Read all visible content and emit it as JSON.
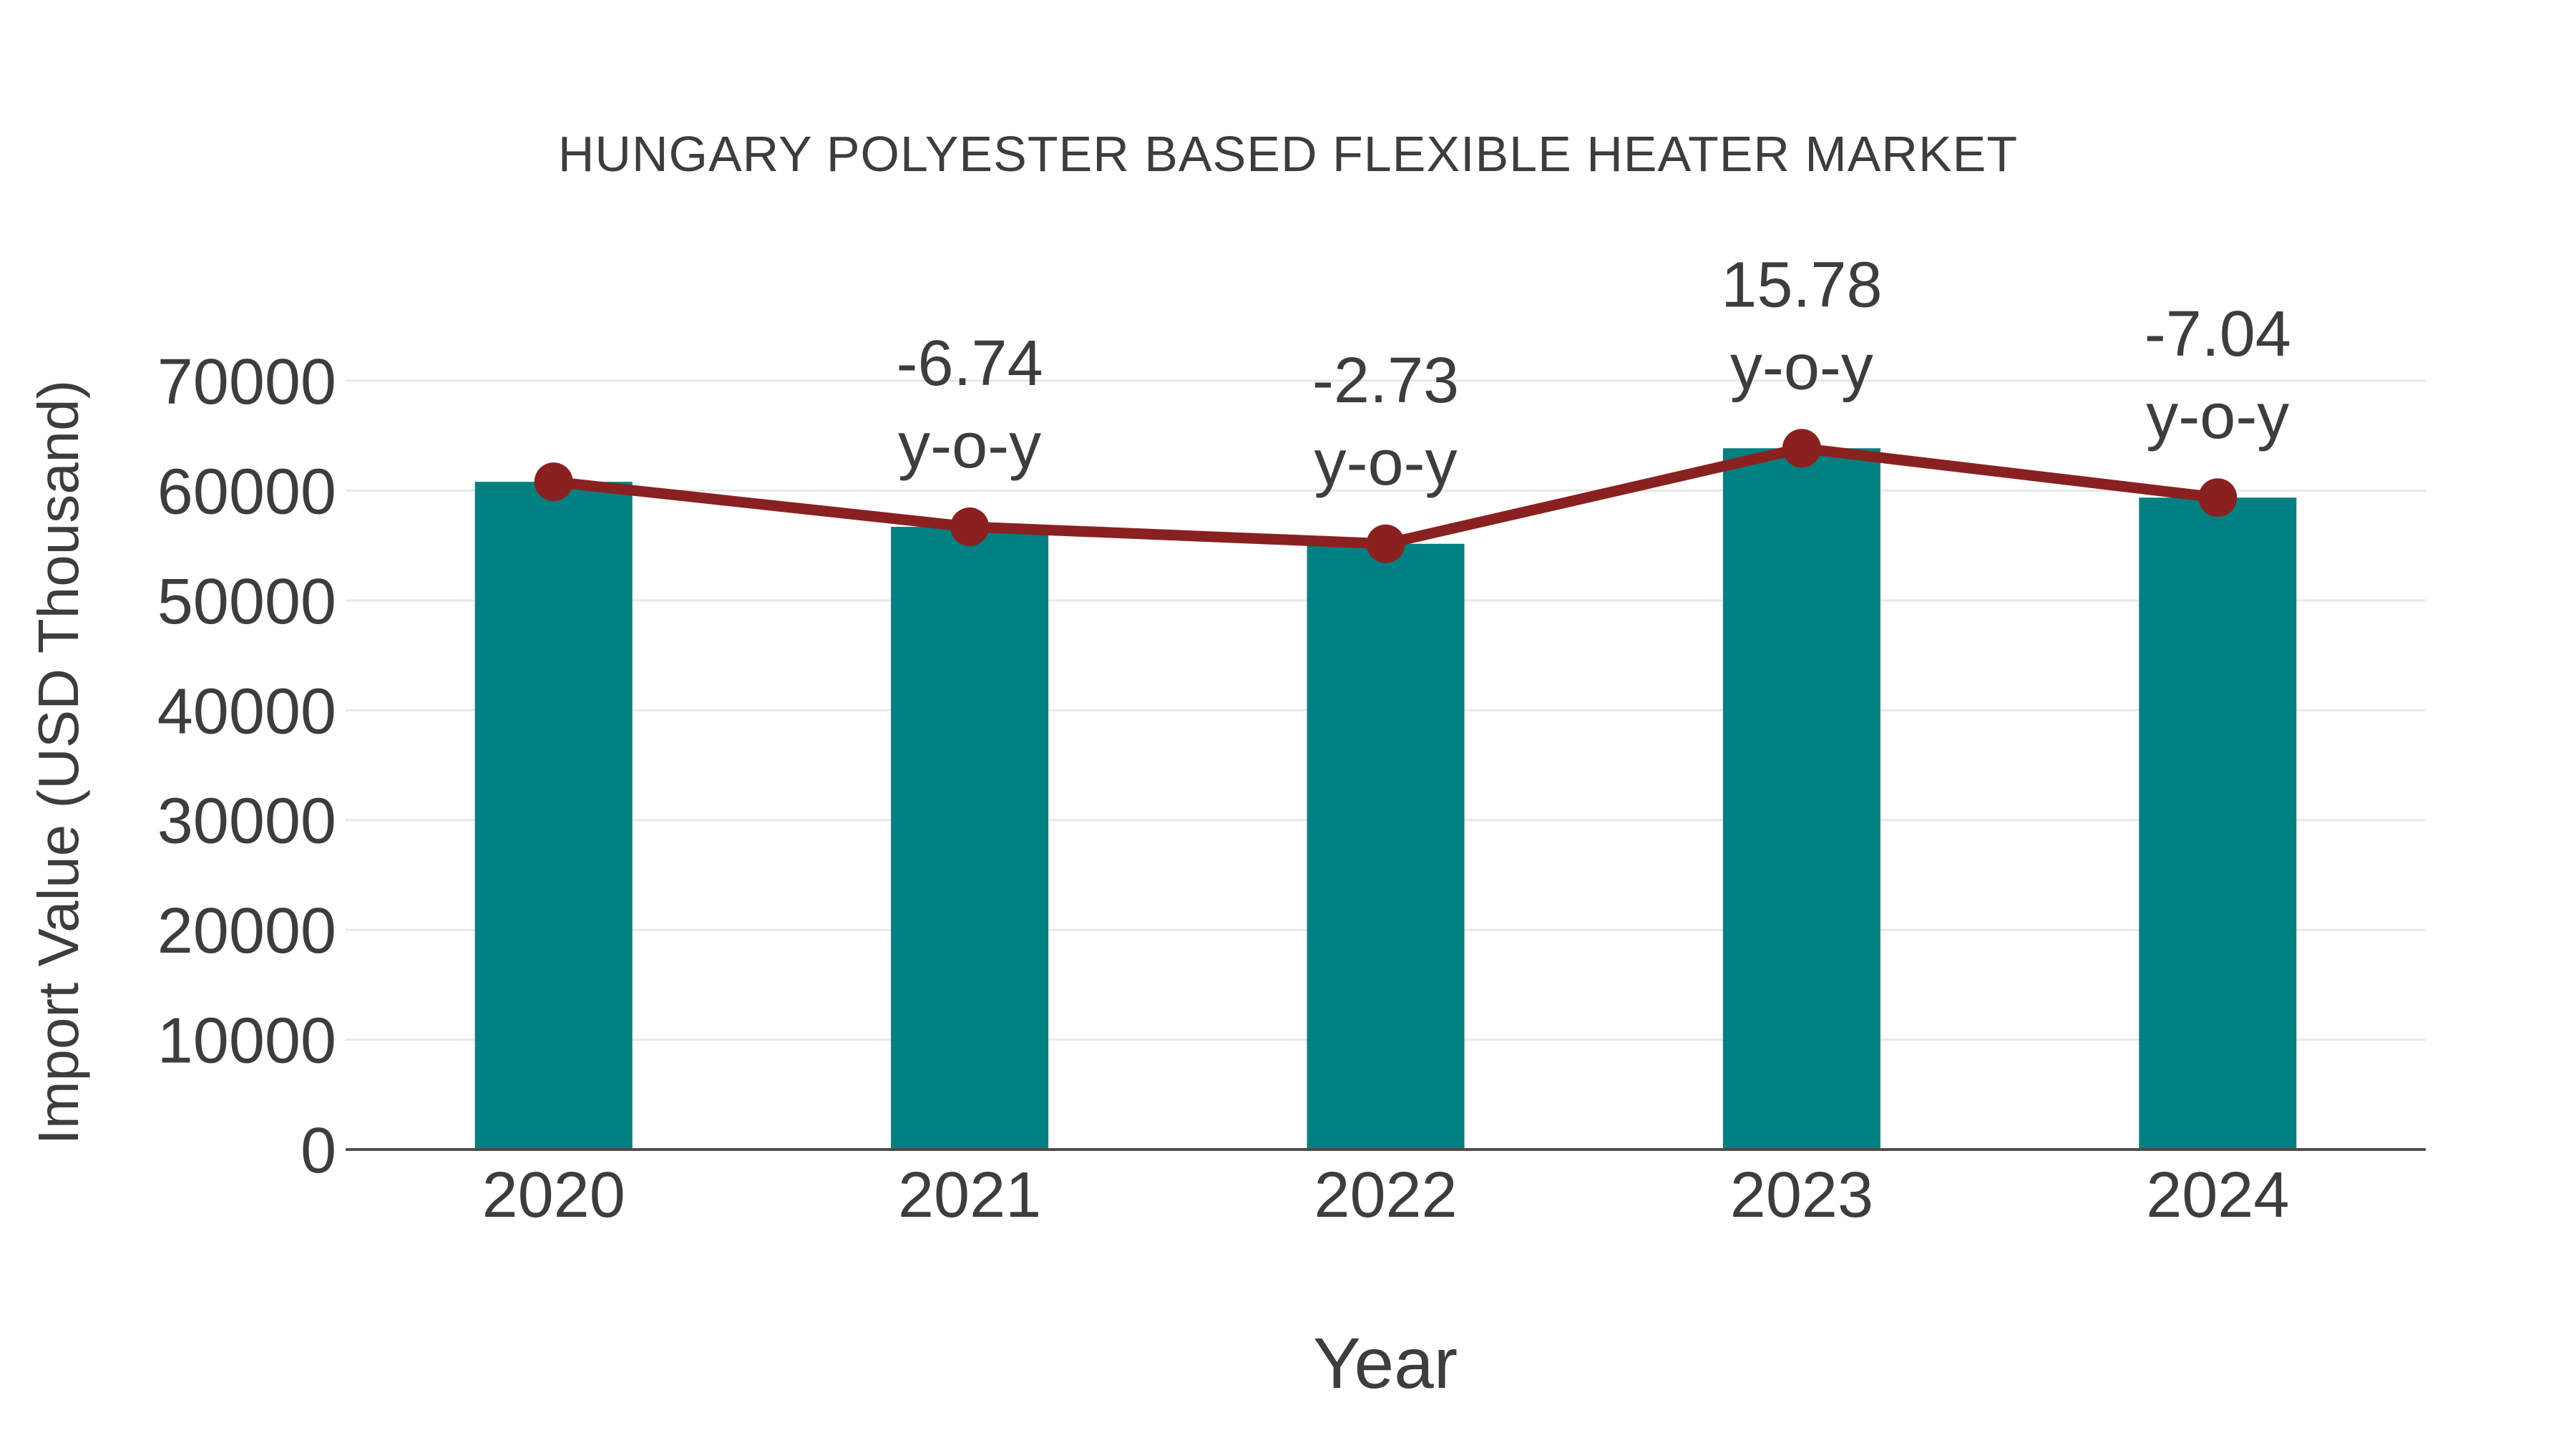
{
  "chart_data": {
    "type": "combo-bar-line",
    "title": "HUNGARY POLYESTER BASED FLEXIBLE HEATER MARKET",
    "xlabel": "Year",
    "ylabel": "Import Value (USD Thousand)",
    "categories": [
      "2020",
      "2021",
      "2022",
      "2023",
      "2024"
    ],
    "series": [
      {
        "name": "Import Value",
        "type": "bar",
        "color": "#008080",
        "values": [
          60800,
          56702,
          55154,
          63857,
          59361
        ]
      },
      {
        "name": "y-o-y trend",
        "type": "line",
        "color": "#8a2121",
        "values": [
          60800,
          56702,
          55154,
          63857,
          59361
        ]
      }
    ],
    "annotations": [
      {
        "category": "2021",
        "value": "-6.74",
        "unit": "y-o-y"
      },
      {
        "category": "2022",
        "value": "-2.73",
        "unit": "y-o-y"
      },
      {
        "category": "2023",
        "value": "15.78",
        "unit": "y-o-y"
      },
      {
        "category": "2024",
        "value": "-7.04",
        "unit": "y-o-y"
      }
    ],
    "yticks": [
      0,
      10000,
      20000,
      30000,
      40000,
      50000,
      60000,
      70000
    ],
    "ylim": [
      0,
      70000
    ],
    "grid": "horizontal-light",
    "legend": "none",
    "colors": {
      "bar": "#008080",
      "line": "#8a2121",
      "text": "#3d3d3d",
      "grid": "#e8e8e8",
      "axis": "#4d4d4d",
      "background": "#ffffff"
    }
  }
}
